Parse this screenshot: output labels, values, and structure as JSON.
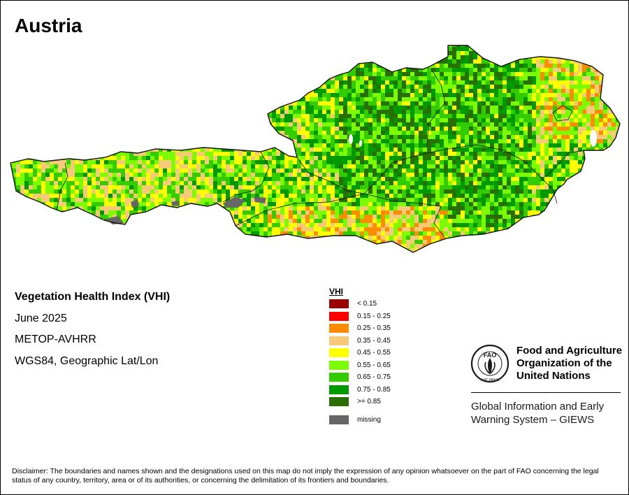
{
  "title": "Austria",
  "info": {
    "index_name": "Vegetation Health Index (VHI)",
    "date": "June 2025",
    "sensor": "METOP-AVHRR",
    "projection": "WGS84, Geographic Lat/Lon"
  },
  "legend": {
    "title": "VHI",
    "items": [
      {
        "label": "< 0.15",
        "color": "#990000"
      },
      {
        "label": "0.15 - 0.25",
        "color": "#ff0000"
      },
      {
        "label": "0.25 - 0.35",
        "color": "#ff8c00"
      },
      {
        "label": "0.35 - 0.45",
        "color": "#f9c97a"
      },
      {
        "label": "0.45 - 0.55",
        "color": "#ffff00"
      },
      {
        "label": "0.55 - 0.65",
        "color": "#7cfc00"
      },
      {
        "label": "0.65 - 0.75",
        "color": "#33cc00"
      },
      {
        "label": "0.75 - 0.85",
        "color": "#009900"
      },
      {
        "label": ">= 0.85",
        "color": "#2b6e00"
      }
    ],
    "missing": {
      "label": "missing",
      "color": "#666666"
    }
  },
  "fao": {
    "name_lines": [
      "Food and Agriculture",
      "Organization of the",
      "United Nations"
    ],
    "logo_text": "FAO",
    "logo_motto": "FIAT PANIS"
  },
  "giews": {
    "lines": [
      "Global Information and Early",
      "Warning System – GIEWS"
    ]
  },
  "disclaimer": "Disclaimer: The boundaries and names shown and the designations used on this map do not imply the expression of any opinion whatsoever on the part of FAO concerning the legal status of any country, territory, area or of its authorities, or concerning the delimitation of its frontiers and boundaries."
}
